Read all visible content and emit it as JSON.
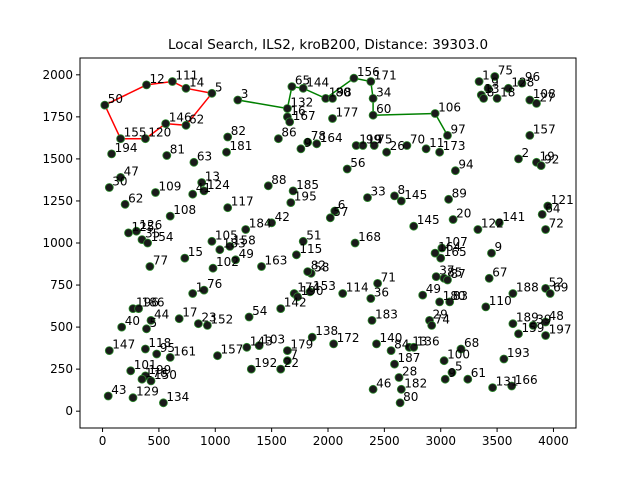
{
  "chart_data": {
    "type": "scatter",
    "title": "Local Search, ILS2, kroB200, Distance: 39303.0",
    "xlabel": "",
    "ylabel": "",
    "xlim": [
      -200,
      4200
    ],
    "ylim": [
      -100,
      2100
    ],
    "xticks": [
      0,
      500,
      1000,
      1500,
      2000,
      2500,
      3000,
      3500,
      4000
    ],
    "yticks": [
      0,
      250,
      500,
      750,
      1000,
      1250,
      1500,
      1750,
      2000
    ],
    "grid": false,
    "legend": "none",
    "colors": {
      "red_path": "#ff0000",
      "green_path": "#008000",
      "node": "#1a1a1a",
      "node_edge": "#2e8b2e"
    },
    "points": [
      {
        "id": "50",
        "x": 20,
        "y": 1820
      },
      {
        "id": "12",
        "x": 390,
        "y": 1940
      },
      {
        "id": "111",
        "x": 620,
        "y": 1960
      },
      {
        "id": "14",
        "x": 740,
        "y": 1920
      },
      {
        "id": "5",
        "x": 970,
        "y": 1890
      },
      {
        "id": "3",
        "x": 1200,
        "y": 1850
      },
      {
        "id": "146",
        "x": 560,
        "y": 1710
      },
      {
        "id": "62",
        "x": 740,
        "y": 1700
      },
      {
        "id": "155",
        "x": 160,
        "y": 1620
      },
      {
        "id": "120",
        "x": 380,
        "y": 1620
      },
      {
        "id": "194",
        "x": 80,
        "y": 1530
      },
      {
        "id": "81",
        "x": 570,
        "y": 1520
      },
      {
        "id": "63",
        "x": 810,
        "y": 1480
      },
      {
        "id": "82",
        "x": 1110,
        "y": 1630
      },
      {
        "id": "181",
        "x": 1100,
        "y": 1540
      },
      {
        "id": "47",
        "x": 160,
        "y": 1390
      },
      {
        "id": "30",
        "x": 60,
        "y": 1330
      },
      {
        "id": "13",
        "x": 880,
        "y": 1360
      },
      {
        "id": "109",
        "x": 470,
        "y": 1300
      },
      {
        "id": "41",
        "x": 800,
        "y": 1290
      },
      {
        "id": "124",
        "x": 900,
        "y": 1310
      },
      {
        "id": "62b",
        "x": 200,
        "y": 1230
      },
      {
        "id": "108",
        "x": 600,
        "y": 1160
      },
      {
        "id": "117",
        "x": 1110,
        "y": 1210
      },
      {
        "id": "88",
        "x": 1470,
        "y": 1340
      },
      {
        "id": "125",
        "x": 230,
        "y": 1060
      },
      {
        "id": "126",
        "x": 300,
        "y": 1070
      },
      {
        "id": "35",
        "x": 350,
        "y": 1020
      },
      {
        "id": "154",
        "x": 400,
        "y": 1000
      },
      {
        "id": "105",
        "x": 970,
        "y": 1010
      },
      {
        "id": "158",
        "x": 1130,
        "y": 980
      },
      {
        "id": "183b",
        "x": 1040,
        "y": 960
      },
      {
        "id": "49",
        "x": 1180,
        "y": 900
      },
      {
        "id": "184",
        "x": 1270,
        "y": 1080
      },
      {
        "id": "42",
        "x": 1500,
        "y": 1120
      },
      {
        "id": "15",
        "x": 730,
        "y": 910
      },
      {
        "id": "102",
        "x": 980,
        "y": 850
      },
      {
        "id": "163",
        "x": 1410,
        "y": 860
      },
      {
        "id": "77",
        "x": 420,
        "y": 860
      },
      {
        "id": "76",
        "x": 900,
        "y": 720
      },
      {
        "id": "1",
        "x": 800,
        "y": 700
      },
      {
        "id": "196",
        "x": 270,
        "y": 610
      },
      {
        "id": "186",
        "x": 320,
        "y": 610
      },
      {
        "id": "40",
        "x": 170,
        "y": 500
      },
      {
        "id": "44",
        "x": 430,
        "y": 540
      },
      {
        "id": "5b",
        "x": 390,
        "y": 490
      },
      {
        "id": "17",
        "x": 680,
        "y": 550
      },
      {
        "id": "23",
        "x": 850,
        "y": 520
      },
      {
        "id": "152",
        "x": 930,
        "y": 510
      },
      {
        "id": "147",
        "x": 60,
        "y": 360
      },
      {
        "id": "118",
        "x": 380,
        "y": 370
      },
      {
        "id": "95",
        "x": 480,
        "y": 340
      },
      {
        "id": "161",
        "x": 600,
        "y": 320
      },
      {
        "id": "101",
        "x": 250,
        "y": 240
      },
      {
        "id": "199",
        "x": 380,
        "y": 210
      },
      {
        "id": "178",
        "x": 350,
        "y": 190
      },
      {
        "id": "150",
        "x": 430,
        "y": 180
      },
      {
        "id": "43",
        "x": 50,
        "y": 90
      },
      {
        "id": "129",
        "x": 270,
        "y": 80
      },
      {
        "id": "134",
        "x": 540,
        "y": 50
      },
      {
        "id": "157b",
        "x": 1020,
        "y": 330
      },
      {
        "id": "54",
        "x": 1300,
        "y": 560
      },
      {
        "id": "142",
        "x": 1580,
        "y": 610
      },
      {
        "id": "143",
        "x": 1280,
        "y": 380
      },
      {
        "id": "103",
        "x": 1390,
        "y": 390
      },
      {
        "id": "179",
        "x": 1640,
        "y": 360
      },
      {
        "id": "192",
        "x": 1320,
        "y": 250
      },
      {
        "id": "7",
        "x": 1640,
        "y": 300
      },
      {
        "id": "22",
        "x": 1580,
        "y": 250
      },
      {
        "id": "174",
        "x": 1700,
        "y": 700
      },
      {
        "id": "190",
        "x": 1730,
        "y": 680
      },
      {
        "id": "153",
        "x": 1840,
        "y": 710
      },
      {
        "id": "114",
        "x": 2130,
        "y": 700
      },
      {
        "id": "138",
        "x": 1860,
        "y": 440
      },
      {
        "id": "172",
        "x": 2050,
        "y": 400
      },
      {
        "id": "58",
        "x": 1850,
        "y": 820
      },
      {
        "id": "82b",
        "x": 1820,
        "y": 830
      },
      {
        "id": "115",
        "x": 1720,
        "y": 930
      },
      {
        "id": "51",
        "x": 1780,
        "y": 1010
      },
      {
        "id": "185",
        "x": 1690,
        "y": 1310
      },
      {
        "id": "195",
        "x": 1670,
        "y": 1240
      },
      {
        "id": "65",
        "x": 1680,
        "y": 1930
      },
      {
        "id": "144",
        "x": 1780,
        "y": 1920
      },
      {
        "id": "132",
        "x": 1640,
        "y": 1800
      },
      {
        "id": "16",
        "x": 1640,
        "y": 1750
      },
      {
        "id": "167",
        "x": 1660,
        "y": 1720
      },
      {
        "id": "86",
        "x": 1560,
        "y": 1620
      },
      {
        "id": "198",
        "x": 1980,
        "y": 1860
      },
      {
        "id": "80",
        "x": 2040,
        "y": 1860
      },
      {
        "id": "156",
        "x": 2230,
        "y": 1980
      },
      {
        "id": "171",
        "x": 2380,
        "y": 1960
      },
      {
        "id": "34",
        "x": 2400,
        "y": 1860
      },
      {
        "id": "177",
        "x": 2040,
        "y": 1740
      },
      {
        "id": "60",
        "x": 2400,
        "y": 1760
      },
      {
        "id": "78",
        "x": 1820,
        "y": 1600
      },
      {
        "id": "164",
        "x": 1900,
        "y": 1590
      },
      {
        "id": "9",
        "x": 1760,
        "y": 1560
      },
      {
        "id": "119",
        "x": 2250,
        "y": 1580
      },
      {
        "id": "99",
        "x": 2310,
        "y": 1580
      },
      {
        "id": "75",
        "x": 2410,
        "y": 1580
      },
      {
        "id": "56",
        "x": 2170,
        "y": 1440
      },
      {
        "id": "26",
        "x": 2520,
        "y": 1540
      },
      {
        "id": "70",
        "x": 2700,
        "y": 1580
      },
      {
        "id": "11",
        "x": 2870,
        "y": 1560
      },
      {
        "id": "173",
        "x": 2990,
        "y": 1540
      },
      {
        "id": "106",
        "x": 2950,
        "y": 1770
      },
      {
        "id": "97",
        "x": 3060,
        "y": 1640
      },
      {
        "id": "33",
        "x": 2350,
        "y": 1270
      },
      {
        "id": "8",
        "x": 2590,
        "y": 1280
      },
      {
        "id": "145b",
        "x": 2650,
        "y": 1250
      },
      {
        "id": "6",
        "x": 2060,
        "y": 1190
      },
      {
        "id": "57",
        "x": 2020,
        "y": 1150
      },
      {
        "id": "168",
        "x": 2240,
        "y": 1000
      },
      {
        "id": "145",
        "x": 2760,
        "y": 1100
      },
      {
        "id": "89",
        "x": 3070,
        "y": 1260
      },
      {
        "id": "94",
        "x": 3130,
        "y": 1430
      },
      {
        "id": "20",
        "x": 3110,
        "y": 1140
      },
      {
        "id": "122",
        "x": 3330,
        "y": 1080
      },
      {
        "id": "141",
        "x": 3520,
        "y": 1120
      },
      {
        "id": "107",
        "x": 3010,
        "y": 970
      },
      {
        "id": "165",
        "x": 3000,
        "y": 910
      },
      {
        "id": "164b",
        "x": 2950,
        "y": 940
      },
      {
        "id": "37",
        "x": 2960,
        "y": 800
      },
      {
        "id": "85",
        "x": 3030,
        "y": 790
      },
      {
        "id": "87",
        "x": 3060,
        "y": 780
      },
      {
        "id": "67",
        "x": 3430,
        "y": 790
      },
      {
        "id": "9b",
        "x": 3450,
        "y": 940
      },
      {
        "id": "49b",
        "x": 2840,
        "y": 690
      },
      {
        "id": "180",
        "x": 2990,
        "y": 650
      },
      {
        "id": "83",
        "x": 3080,
        "y": 650
      },
      {
        "id": "29",
        "x": 2900,
        "y": 540
      },
      {
        "id": "74",
        "x": 2920,
        "y": 510
      },
      {
        "id": "71",
        "x": 2440,
        "y": 760
      },
      {
        "id": "36",
        "x": 2380,
        "y": 670
      },
      {
        "id": "183",
        "x": 2390,
        "y": 540
      },
      {
        "id": "140",
        "x": 2430,
        "y": 400
      },
      {
        "id": "84",
        "x": 2560,
        "y": 360
      },
      {
        "id": "13b",
        "x": 2720,
        "y": 380
      },
      {
        "id": "136",
        "x": 2760,
        "y": 380
      },
      {
        "id": "187",
        "x": 2590,
        "y": 280
      },
      {
        "id": "28",
        "x": 2630,
        "y": 200
      },
      {
        "id": "46",
        "x": 2400,
        "y": 130
      },
      {
        "id": "182",
        "x": 2650,
        "y": 130
      },
      {
        "id": "80b",
        "x": 2640,
        "y": 50
      },
      {
        "id": "100",
        "x": 3030,
        "y": 300
      },
      {
        "id": "68",
        "x": 3180,
        "y": 370
      },
      {
        "id": "5c",
        "x": 3100,
        "y": 230
      },
      {
        "id": "9c",
        "x": 3040,
        "y": 190
      },
      {
        "id": "61",
        "x": 3240,
        "y": 190
      },
      {
        "id": "131",
        "x": 3460,
        "y": 140
      },
      {
        "id": "166",
        "x": 3630,
        "y": 150
      },
      {
        "id": "193",
        "x": 3560,
        "y": 310
      },
      {
        "id": "110",
        "x": 3400,
        "y": 620
      },
      {
        "id": "188",
        "x": 3640,
        "y": 700
      },
      {
        "id": "189",
        "x": 3640,
        "y": 520
      },
      {
        "id": "159",
        "x": 3690,
        "y": 460
      },
      {
        "id": "39",
        "x": 3820,
        "y": 510
      },
      {
        "id": "48",
        "x": 3930,
        "y": 530
      },
      {
        "id": "197",
        "x": 3930,
        "y": 450
      },
      {
        "id": "52",
        "x": 3930,
        "y": 730
      },
      {
        "id": "69",
        "x": 3970,
        "y": 700
      },
      {
        "id": "72",
        "x": 3930,
        "y": 1080
      },
      {
        "id": "121",
        "x": 3950,
        "y": 1220
      },
      {
        "id": "64",
        "x": 3900,
        "y": 1170
      },
      {
        "id": "19",
        "x": 3850,
        "y": 1480
      },
      {
        "id": "92",
        "x": 3890,
        "y": 1460
      },
      {
        "id": "157",
        "x": 3790,
        "y": 1640
      },
      {
        "id": "2",
        "x": 3690,
        "y": 1500
      },
      {
        "id": "108b",
        "x": 3790,
        "y": 1850
      },
      {
        "id": "27",
        "x": 3850,
        "y": 1830
      },
      {
        "id": "96",
        "x": 3720,
        "y": 1950
      },
      {
        "id": "75b",
        "x": 3480,
        "y": 1990
      },
      {
        "id": "1b",
        "x": 3340,
        "y": 1960
      },
      {
        "id": "9d",
        "x": 3420,
        "y": 1920
      },
      {
        "id": "128",
        "x": 3600,
        "y": 1920
      },
      {
        "id": "13c",
        "x": 3360,
        "y": 1880
      },
      {
        "id": "18",
        "x": 3500,
        "y": 1860
      },
      {
        "id": "8b",
        "x": 3380,
        "y": 1860
      }
    ],
    "red_path": [
      "50",
      "12",
      "111",
      "14",
      "5",
      "62",
      "146",
      "120",
      "155",
      "50"
    ],
    "green_path": [
      "3",
      "132",
      "65",
      "144",
      "198",
      "156",
      "171",
      "34",
      "60",
      "106",
      "97"
    ]
  }
}
